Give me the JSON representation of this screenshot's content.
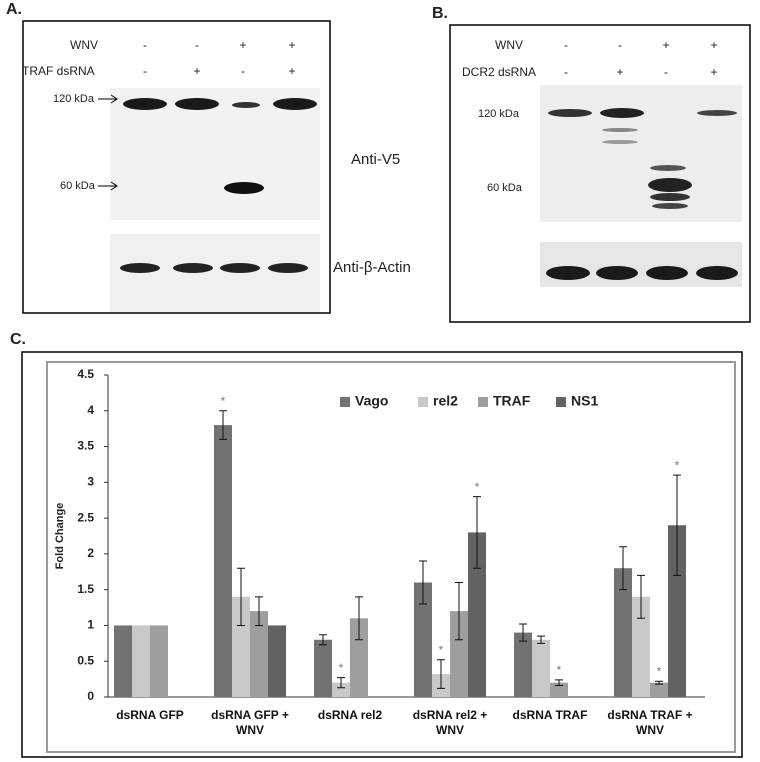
{
  "panel_a": {
    "label": "A.",
    "conditions": [
      {
        "name": "WNV",
        "values": [
          "-",
          "-",
          "+",
          "+"
        ]
      },
      {
        "name": "TRAF dsRNA",
        "values": [
          "-",
          "+",
          "-",
          "+"
        ]
      }
    ],
    "markers": [
      "120 kDa",
      "60 kDa"
    ],
    "antibodies": [
      "Anti-V5",
      "Anti-β-Actin"
    ]
  },
  "panel_b": {
    "label": "B.",
    "conditions": [
      {
        "name": "WNV",
        "values": [
          "-",
          "-",
          "+",
          "+"
        ]
      },
      {
        "name": "DCR2 dsRNA",
        "values": [
          "-",
          "+",
          "-",
          "+"
        ]
      }
    ],
    "markers": [
      "120 kDa",
      "60 kDa"
    ]
  },
  "panel_c": {
    "label": "C."
  },
  "chart_data": {
    "type": "bar",
    "y_label": "Fold Change",
    "categories": [
      "dsRNA GFP",
      "dsRNA GFP + WNV",
      "dsRNA rel2",
      "dsRNA rel2 + WNV",
      "dsRNA TRAF",
      "dsRNA TRAF + WNV"
    ],
    "series": [
      {
        "name": "Vago",
        "color": "#727272",
        "values": [
          1,
          3.8,
          0.8,
          1.6,
          0.9,
          1.8
        ],
        "errors": [
          null,
          0.2,
          0.07,
          0.3,
          0.12,
          0.3
        ],
        "significance": [
          null,
          "*",
          null,
          null,
          null,
          null
        ]
      },
      {
        "name": "rel2",
        "color": "#c8c8c8",
        "values": [
          1,
          1.4,
          0.2,
          0.32,
          0.8,
          1.4
        ],
        "errors": [
          null,
          0.4,
          0.07,
          0.2,
          0.05,
          0.3
        ],
        "significance": [
          null,
          null,
          "*",
          "*",
          null,
          null
        ]
      },
      {
        "name": "TRAF",
        "color": "#9e9e9e",
        "values": [
          1,
          1.2,
          1.1,
          1.2,
          0.2,
          0.2
        ],
        "errors": [
          null,
          0.2,
          0.3,
          0.4,
          0.04,
          0.02
        ],
        "significance": [
          null,
          null,
          null,
          null,
          "*",
          "*"
        ]
      },
      {
        "name": "NS1",
        "color": "#626262",
        "values": [
          null,
          1,
          null,
          2.3,
          null,
          2.4
        ],
        "errors": [
          null,
          null,
          null,
          0.5,
          null,
          0.7
        ],
        "significance": [
          null,
          null,
          null,
          "*",
          null,
          "*"
        ]
      }
    ],
    "ylim": [
      0,
      4.5
    ],
    "yticks": [
      0,
      0.5,
      1,
      1.5,
      2,
      2.5,
      3,
      3.5,
      4,
      4.5
    ],
    "grid": false,
    "legend": "top"
  }
}
